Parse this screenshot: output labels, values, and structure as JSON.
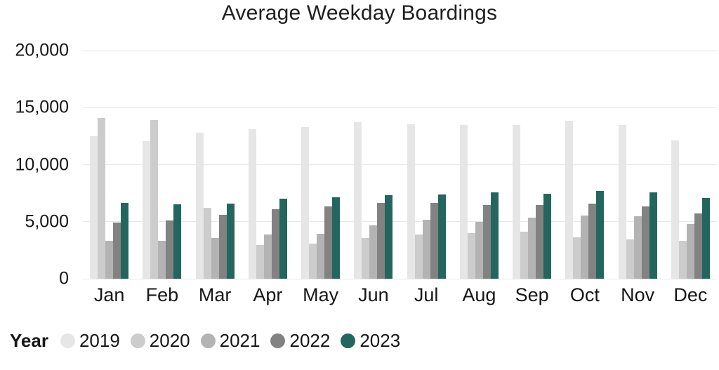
{
  "title": "Average Weekday Boardings",
  "legend": {
    "title": "Year",
    "position": "bottom-left"
  },
  "colors": {
    "background": "#ffffff",
    "gridline": "#e8e8e8",
    "text": "#171717",
    "accent_2023": "#23665e"
  },
  "chart_data": {
    "type": "bar",
    "title": "Average Weekday Boardings",
    "xlabel": "",
    "ylabel": "",
    "ylim": [
      0,
      20000
    ],
    "grid": true,
    "legend_position": "bottom-left",
    "legend_title": "Year",
    "y_ticks": [
      {
        "value": 20000,
        "label": "20,000"
      },
      {
        "value": 15000,
        "label": "15,000"
      },
      {
        "value": 10000,
        "label": "10,000"
      },
      {
        "value": 5000,
        "label": "5,000"
      },
      {
        "value": 0,
        "label": "0"
      }
    ],
    "categories": [
      "Jan",
      "Feb",
      "Mar",
      "Apr",
      "May",
      "Jun",
      "Jul",
      "Aug",
      "Sep",
      "Oct",
      "Nov",
      "Dec"
    ],
    "series": [
      {
        "name": "2019",
        "color": "#e6e6e6",
        "values": [
          12500,
          12050,
          12800,
          13100,
          13300,
          13700,
          13550,
          13450,
          13450,
          13850,
          13450,
          12100
        ]
      },
      {
        "name": "2020",
        "color": "#cccccc",
        "values": [
          14100,
          13900,
          6200,
          2950,
          3100,
          3550,
          3900,
          4000,
          4100,
          3650,
          3450,
          3350
        ]
      },
      {
        "name": "2021",
        "color": "#b3b3b3",
        "values": [
          3350,
          3350,
          3600,
          3900,
          3950,
          4650,
          5200,
          5000,
          5350,
          5550,
          5450,
          4800
        ]
      },
      {
        "name": "2022",
        "color": "#828282",
        "values": [
          4950,
          5100,
          5600,
          6100,
          6350,
          6650,
          6650,
          6450,
          6450,
          6600,
          6350,
          5750
        ]
      },
      {
        "name": "2023",
        "color": "#23665e",
        "values": [
          6650,
          6500,
          6600,
          7000,
          7150,
          7300,
          7400,
          7600,
          7450,
          7700,
          7600,
          7100
        ]
      }
    ]
  }
}
